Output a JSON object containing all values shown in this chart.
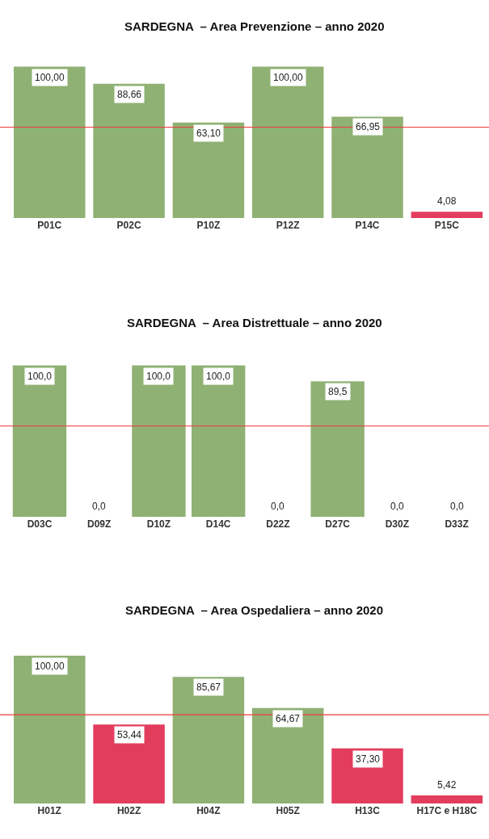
{
  "chart_data": [
    {
      "type": "bar",
      "title": "SARDEGNA  – Area Prevenzione – anno 2020",
      "categories": [
        "P01C",
        "P02C",
        "P10Z",
        "P12Z",
        "P14C",
        "P15C"
      ],
      "values": [
        100.0,
        88.66,
        63.1,
        100.0,
        66.95,
        4.08
      ],
      "value_labels": [
        "100,00",
        "88,66",
        "63,10",
        "100,00",
        "66,95",
        "4,08"
      ],
      "colors": [
        "#8fb174",
        "#8fb174",
        "#8fb174",
        "#8fb174",
        "#8fb174",
        "#e33d5e"
      ],
      "ref_lines": [
        {
          "axis": "y",
          "value": 60,
          "color": "#f03c3c"
        }
      ]
    },
    {
      "type": "bar",
      "title": "SARDEGNA  – Area Distrettuale – anno 2020",
      "categories": [
        "D03C",
        "D09Z",
        "D10Z",
        "D14C",
        "D22Z",
        "D27C",
        "D30Z",
        "D33Z"
      ],
      "values": [
        100.0,
        0.0,
        100.0,
        100.0,
        0.0,
        89.5,
        0.0,
        0.0
      ],
      "value_labels": [
        "100,0",
        "0,0",
        "100,0",
        "100,0",
        "0,0",
        "89,5",
        "0,0",
        "0,0"
      ],
      "colors": [
        "#8fb174",
        "#e33d5e",
        "#8fb174",
        "#8fb174",
        "#e33d5e",
        "#8fb174",
        "#e33d5e",
        "#e33d5e"
      ],
      "ref_lines": [
        {
          "axis": "y",
          "value": 60,
          "color": "#f03c3c"
        }
      ]
    },
    {
      "type": "bar",
      "title": "SARDEGNA  – Area Ospedaliera – anno 2020",
      "categories": [
        "H01Z",
        "H02Z",
        "H04Z",
        "H05Z",
        "H13C",
        "H17C e H18C"
      ],
      "values": [
        100.0,
        53.44,
        85.67,
        64.67,
        37.3,
        5.42
      ],
      "value_labels": [
        "100,00",
        "53,44",
        "85,67",
        "64,67",
        "37,30",
        "5,42"
      ],
      "colors": [
        "#8fb174",
        "#e33d5e",
        "#8fb174",
        "#8fb174",
        "#e33d5e",
        "#e33d5e"
      ],
      "ref_lines": [
        {
          "axis": "y",
          "value": 60,
          "color": "#f03c3c"
        }
      ]
    }
  ]
}
